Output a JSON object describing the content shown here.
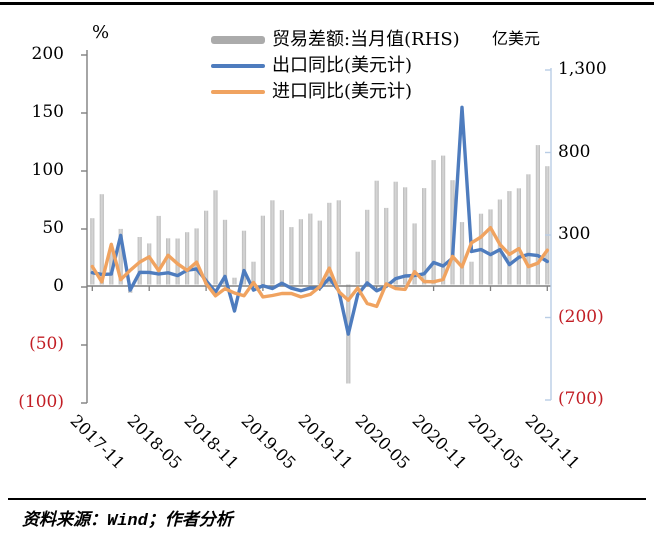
{
  "footer": {
    "source": "资料来源：Wind；作者分析"
  },
  "chart_data": {
    "type": "combo",
    "title": "",
    "legend_position": "top-center",
    "grid": false,
    "categories": [
      "2017-11",
      "2017-12",
      "2018-01",
      "2018-02",
      "2018-03",
      "2018-04",
      "2018-05",
      "2018-06",
      "2018-07",
      "2018-08",
      "2018-09",
      "2018-10",
      "2018-11",
      "2018-12",
      "2019-01",
      "2019-02",
      "2019-03",
      "2019-04",
      "2019-05",
      "2019-06",
      "2019-07",
      "2019-08",
      "2019-09",
      "2019-10",
      "2019-11",
      "2019-12",
      "2020-01",
      "2020-02",
      "2020-03",
      "2020-04",
      "2020-05",
      "2020-06",
      "2020-07",
      "2020-08",
      "2020-09",
      "2020-10",
      "2020-11",
      "2020-12",
      "2021-01",
      "2021-02",
      "2021-03",
      "2021-04",
      "2021-05",
      "2021-06",
      "2021-07",
      "2021-08",
      "2021-09",
      "2021-10",
      "2021-11"
    ],
    "x_tick_labels": [
      "2017-11",
      "2018-05",
      "2018-11",
      "2019-05",
      "2019-11",
      "2020-05",
      "2020-11",
      "2021-05",
      "2021-11"
    ],
    "series": [
      {
        "name": "贸易差额:当月值(RHS)",
        "type": "bar",
        "axis": "right",
        "color": "#C7C7C7",
        "legend_color": "#ABABAB",
        "values": [
          402,
          547,
          203,
          337,
          -50,
          288,
          249,
          416,
          280,
          279,
          317,
          340,
          447,
          571,
          392,
          41,
          326,
          138,
          417,
          510,
          451,
          348,
          396,
          430,
          387,
          495,
          510,
          -600,
          199,
          453,
          629,
          464,
          623,
          589,
          370,
          584,
          754,
          781,
          632,
          378,
          138,
          429,
          455,
          515,
          566,
          583,
          668,
          845,
          717
        ]
      },
      {
        "name": "出口同比(美元计)",
        "type": "line",
        "axis": "left",
        "color": "#4E7CBE",
        "legend_color": "#4E7CBE",
        "values": [
          12.3,
          10.9,
          11.1,
          44.5,
          -2.7,
          12.7,
          12.6,
          11.2,
          12.2,
          9.8,
          14.5,
          15.6,
          5.4,
          -4.4,
          9.1,
          -20.7,
          14.2,
          -2.7,
          1.1,
          -1.3,
          3.3,
          -1.0,
          -3.2,
          -0.9,
          -1.1,
          7.6,
          -3.3,
          -40.6,
          -6.6,
          3.5,
          -3.3,
          0.5,
          7.2,
          9.5,
          9.9,
          11.4,
          21.1,
          18.1,
          24.8,
          154.9,
          30.6,
          32.3,
          27.9,
          32.2,
          19.3,
          25.6,
          28.1,
          27.1,
          22.0
        ]
      },
      {
        "name": "进口同比(美元计)",
        "type": "line",
        "axis": "left",
        "color": "#F0A360",
        "legend_color": "#F0A360",
        "values": [
          17.7,
          4.5,
          36.8,
          6.3,
          14.4,
          21.5,
          26.0,
          14.1,
          27.3,
          20.0,
          14.3,
          21.4,
          3.0,
          -7.6,
          -1.5,
          -5.2,
          -7.6,
          4.0,
          -8.5,
          -7.3,
          -5.6,
          -5.6,
          -8.5,
          -6.4,
          0.3,
          16.3,
          -4.0,
          -11.4,
          -0.9,
          -14.2,
          -16.7,
          2.7,
          -1.4,
          -2.1,
          13.2,
          4.7,
          4.5,
          6.5,
          26.4,
          17.3,
          38.1,
          43.1,
          51.1,
          36.7,
          28.1,
          33.1,
          17.6,
          20.6,
          31.7
        ]
      }
    ],
    "left_axis": {
      "title": "%",
      "ticks": [
        200,
        150,
        100,
        50,
        0,
        -50,
        -100
      ],
      "min": -100,
      "max": 200
    },
    "right_axis": {
      "title": "亿美元",
      "ticks": [
        1300,
        800,
        300,
        -200,
        -700
      ],
      "min": -700,
      "max": 1300
    },
    "colors": {
      "negative_label": "#C21E25",
      "positive_label": "#000000",
      "axis_line": "#7F7F7F",
      "right_axis_line": "#B9CDE5"
    }
  }
}
